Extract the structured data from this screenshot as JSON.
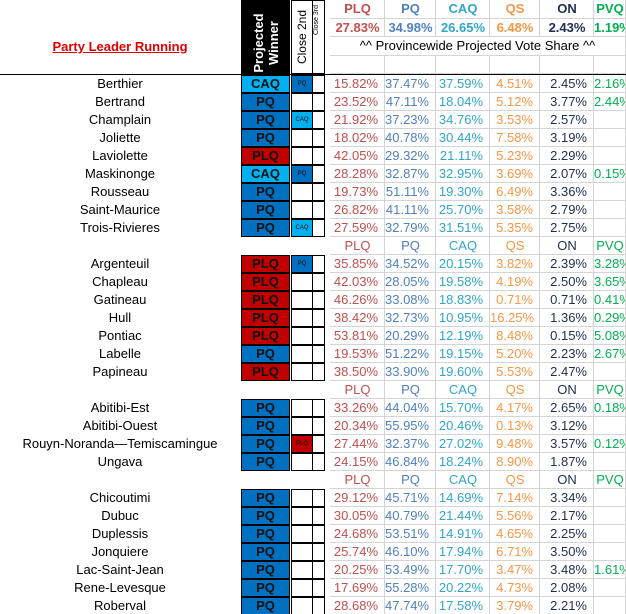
{
  "header": {
    "title": "Party Leader Running",
    "winner_label": "Projected Winner",
    "second_label": "Close 2nd",
    "third_label": "Close 3rd",
    "parties": [
      "PLQ",
      "PQ",
      "CAQ",
      "QS",
      "ON",
      "PVQ"
    ],
    "province_shares": [
      "27.83%",
      "34.98%",
      "26.65%",
      "6.48%",
      "2.43%",
      "1.19%"
    ],
    "province_caption": "^^ Provincewide Projected Vote Share ^^"
  },
  "colors": {
    "PLQ": "#c00000",
    "PQ": "#0070c0",
    "CAQ": "#00b0f0"
  },
  "column_colors": [
    "#c0504d",
    "#4f81bd",
    "#31a5c8",
    "#f79646",
    "#1f2d50",
    "#00b050"
  ],
  "groups": [
    {
      "rows": [
        {
          "name": "Berthier",
          "winner": "CAQ",
          "second": "PQ",
          "shares": [
            "15.82%",
            "37.47%",
            "37.59%",
            "4.51%",
            "2.45%",
            "2.16%"
          ]
        },
        {
          "name": "Bertrand",
          "winner": "PQ",
          "shares": [
            "23.52%",
            "47.11%",
            "18.04%",
            "5.12%",
            "3.77%",
            "2.44%"
          ]
        },
        {
          "name": "Champlain",
          "winner": "PQ",
          "second": "CAQ",
          "shares": [
            "21.92%",
            "37.23%",
            "34.76%",
            "3.53%",
            "2.57%"
          ]
        },
        {
          "name": "Joliette",
          "winner": "PQ",
          "shares": [
            "18.02%",
            "40.78%",
            "30.44%",
            "7.58%",
            "3.19%"
          ]
        },
        {
          "name": "Laviolette",
          "winner": "PLQ",
          "shares": [
            "42.05%",
            "29.32%",
            "21.11%",
            "5.23%",
            "2.29%"
          ]
        },
        {
          "name": "Maskinonge",
          "winner": "CAQ",
          "second": "PQ",
          "shares": [
            "28.28%",
            "32.87%",
            "32.95%",
            "3.69%",
            "2.07%",
            "0.15%"
          ]
        },
        {
          "name": "Rousseau",
          "winner": "PQ",
          "shares": [
            "19.73%",
            "51.11%",
            "19.30%",
            "6.49%",
            "3.36%"
          ]
        },
        {
          "name": "Saint-Maurice",
          "winner": "PQ",
          "shares": [
            "26.82%",
            "41.11%",
            "25.70%",
            "3.58%",
            "2.79%"
          ]
        },
        {
          "name": "Trois-Rivieres",
          "winner": "PQ",
          "second": "CAQ",
          "shares": [
            "27.59%",
            "32.79%",
            "31.51%",
            "5.35%",
            "2.75%"
          ]
        }
      ]
    },
    {
      "parties": [
        "PLQ",
        "PQ",
        "CAQ",
        "QS",
        "ON",
        "PVQ"
      ],
      "rows": [
        {
          "name": "Argenteuil",
          "winner": "PLQ",
          "second": "PQ",
          "shares": [
            "35.85%",
            "34.52%",
            "20.15%",
            "3.82%",
            "2.39%",
            "3.28%"
          ]
        },
        {
          "name": "Chapleau",
          "winner": "PLQ",
          "shares": [
            "42.03%",
            "28.05%",
            "19.58%",
            "4.19%",
            "2.50%",
            "3.65%"
          ]
        },
        {
          "name": "Gatineau",
          "winner": "PLQ",
          "shares": [
            "46.26%",
            "33.08%",
            "18.83%",
            "0.71%",
            "0.71%",
            "0.41%"
          ]
        },
        {
          "name": "Hull",
          "winner": "PLQ",
          "shares": [
            "38.42%",
            "32.73%",
            "10.95%",
            "16.25%",
            "1.36%",
            "0.29%"
          ]
        },
        {
          "name": "Pontiac",
          "winner": "PLQ",
          "shares": [
            "53.81%",
            "20.29%",
            "12.19%",
            "8.48%",
            "0.15%",
            "5.08%"
          ]
        },
        {
          "name": "Labelle",
          "winner": "PQ",
          "shares": [
            "19.53%",
            "51.22%",
            "19.15%",
            "5.20%",
            "2.23%",
            "2.67%"
          ]
        },
        {
          "name": "Papineau",
          "winner": "PLQ",
          "shares": [
            "38.50%",
            "33.90%",
            "19.60%",
            "5.53%",
            "2.47%"
          ]
        }
      ]
    },
    {
      "parties": [
        "PLQ",
        "PQ",
        "CAQ",
        "QS",
        "ON",
        "PVQ"
      ],
      "rows": [
        {
          "name": "Abitibi-Est",
          "winner": "PQ",
          "shares": [
            "33.26%",
            "44.04%",
            "15.70%",
            "4.17%",
            "2.65%",
            "0.18%"
          ]
        },
        {
          "name": "Abitibi-Ouest",
          "winner": "PQ",
          "shares": [
            "20.34%",
            "55.95%",
            "20.46%",
            "0.13%",
            "3.12%"
          ]
        },
        {
          "name": "Rouyn-Noranda—Temiscamingue",
          "winner": "PQ",
          "second": "PLQ",
          "shares": [
            "27.44%",
            "32.37%",
            "27.02%",
            "9.48%",
            "3.57%",
            "0.12%"
          ]
        },
        {
          "name": "Ungava",
          "winner": "PQ",
          "shares": [
            "24.15%",
            "46.84%",
            "18.24%",
            "8.90%",
            "1.87%"
          ]
        }
      ]
    },
    {
      "parties": [
        "PLQ",
        "PQ",
        "CAQ",
        "QS",
        "ON",
        "PVQ"
      ],
      "rows": [
        {
          "name": "Chicoutimi",
          "winner": "PQ",
          "shares": [
            "29.12%",
            "45.71%",
            "14.69%",
            "7.14%",
            "3.34%"
          ]
        },
        {
          "name": "Dubuc",
          "winner": "PQ",
          "shares": [
            "30.05%",
            "40.79%",
            "21.44%",
            "5.56%",
            "2.17%"
          ]
        },
        {
          "name": "Duplessis",
          "winner": "PQ",
          "shares": [
            "24.68%",
            "53.51%",
            "14.91%",
            "4.65%",
            "2.25%"
          ]
        },
        {
          "name": "Jonquiere",
          "winner": "PQ",
          "shares": [
            "25.74%",
            "46.10%",
            "17.94%",
            "6.71%",
            "3.50%"
          ]
        },
        {
          "name": "Lac-Saint-Jean",
          "winner": "PQ",
          "shares": [
            "20.25%",
            "53.49%",
            "17.70%",
            "3.47%",
            "3.48%",
            "1.61%"
          ]
        },
        {
          "name": "Rene-Levesque",
          "winner": "PQ",
          "shares": [
            "17.69%",
            "55.28%",
            "20.22%",
            "4.73%",
            "2.08%"
          ]
        },
        {
          "name": "Roberval",
          "winner": "PQ",
          "shares": [
            "28.68%",
            "47.74%",
            "17.58%",
            "3.79%",
            "2.21%"
          ]
        }
      ]
    }
  ]
}
